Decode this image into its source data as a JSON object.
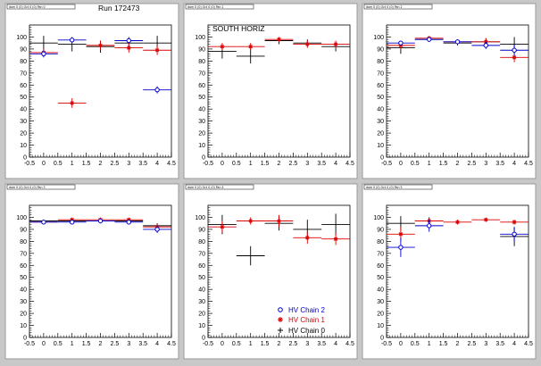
{
  "header": {
    "run_label": "Run 172473"
  },
  "colors": {
    "canvas_bg": "#c8c8c8",
    "pad_bg": "#ffffff",
    "chain2": "#0000cc",
    "chain1": "#dd0000",
    "chain0": "#000000"
  },
  "legend": [
    {
      "label": "HV Chain 2",
      "color": "#0000cc",
      "marker": "open-circle"
    },
    {
      "label": "HV Chain 1",
      "color": "#dd0000",
      "marker": "star"
    },
    {
      "label": "HV Chain 0",
      "color": "#000000",
      "marker": "plus"
    }
  ],
  "chart_data": [
    {
      "type": "scatter",
      "title": "",
      "title_tag": "dom 0 (0) Oct 0 (0) Pan 0",
      "overlay": "",
      "xlim": [
        -0.5,
        4.5
      ],
      "ylim": [
        0,
        110
      ],
      "xticks": [
        "-0.5",
        "0",
        "0.5",
        "1",
        "1.5",
        "2",
        "2.5",
        "3",
        "3.5",
        "4",
        "4.5"
      ],
      "yticks": [
        "0",
        "10",
        "20",
        "30",
        "40",
        "50",
        "60",
        "70",
        "80",
        "90",
        "100"
      ],
      "series": [
        {
          "name": "HV Chain 2",
          "color": "#0000cc",
          "marker": "circle",
          "x": [
            0,
            1,
            3,
            4
          ],
          "y": [
            86,
            97.5,
            97,
            56
          ],
          "yerr": [
            3,
            1,
            1.5,
            3
          ]
        },
        {
          "name": "HV Chain 1",
          "color": "#dd0000",
          "marker": "star",
          "x": [
            0,
            1,
            2,
            3,
            4
          ],
          "y": [
            87,
            45,
            93,
            91,
            89
          ],
          "yerr": [
            3,
            4,
            4,
            4,
            4
          ]
        },
        {
          "name": "HV Chain 0",
          "color": "#000000",
          "marker": "plus",
          "x": [
            0,
            1,
            2,
            3,
            4
          ],
          "y": [
            95,
            94,
            92,
            95,
            95
          ],
          "yerr": [
            6,
            6,
            5,
            5,
            6
          ]
        }
      ]
    },
    {
      "type": "scatter",
      "title": "",
      "title_tag": "dom 0 (0) Oct 0 (0) Pan 1",
      "overlay": "SOUTH HORIZ",
      "xlim": [
        -0.5,
        4.5
      ],
      "ylim": [
        0,
        110
      ],
      "xticks": [
        "-0.5",
        "0",
        "0.5",
        "1",
        "1.5",
        "2",
        "2.5",
        "3",
        "3.5",
        "4",
        "4.5"
      ],
      "yticks": [
        "0",
        "10",
        "20",
        "30",
        "40",
        "50",
        "60",
        "70",
        "80",
        "90",
        "100"
      ],
      "series": [
        {
          "name": "HV Chain 2",
          "color": "#0000cc",
          "marker": "circle",
          "x": [],
          "y": [],
          "yerr": []
        },
        {
          "name": "HV Chain 1",
          "color": "#dd0000",
          "marker": "star",
          "x": [
            0,
            1,
            2,
            3,
            4
          ],
          "y": [
            92,
            92,
            98,
            94,
            94
          ],
          "yerr": [
            3,
            3,
            2,
            3,
            3
          ]
        },
        {
          "name": "HV Chain 0",
          "color": "#000000",
          "marker": "plus",
          "x": [
            0,
            1,
            2,
            3,
            4
          ],
          "y": [
            88,
            84,
            97,
            95,
            92
          ],
          "yerr": [
            6,
            6,
            3,
            3,
            4
          ]
        }
      ]
    },
    {
      "type": "scatter",
      "title": "",
      "title_tag": "dom 0 (0) Oct 0 (0) Pan 2",
      "overlay": "",
      "xlim": [
        -0.5,
        4.5
      ],
      "ylim": [
        0,
        110
      ],
      "xticks": [
        "-0.5",
        "0",
        "0.5",
        "1",
        "1.5",
        "2",
        "2.5",
        "3",
        "3.5",
        "4",
        "4.5"
      ],
      "yticks": [
        "0",
        "10",
        "20",
        "30",
        "40",
        "50",
        "60",
        "70",
        "80",
        "90",
        "100"
      ],
      "series": [
        {
          "name": "HV Chain 2",
          "color": "#0000cc",
          "marker": "circle",
          "x": [
            0,
            1,
            2,
            3,
            4
          ],
          "y": [
            95,
            98,
            96,
            93,
            89
          ],
          "yerr": [
            2,
            1,
            1,
            3,
            5
          ]
        },
        {
          "name": "HV Chain 1",
          "color": "#dd0000",
          "marker": "star",
          "x": [
            0,
            1,
            2,
            3,
            4
          ],
          "y": [
            93,
            99,
            96,
            96,
            83
          ],
          "yerr": [
            3,
            1,
            2,
            3,
            4
          ]
        },
        {
          "name": "HV Chain 0",
          "color": "#000000",
          "marker": "plus",
          "x": [
            0,
            1,
            2,
            3,
            4
          ],
          "y": [
            91,
            98,
            95,
            96,
            94
          ],
          "yerr": [
            5,
            2,
            2,
            3,
            6
          ]
        }
      ]
    },
    {
      "type": "scatter",
      "title": "",
      "title_tag": "dom 0 (0) Oct 0 (0) Pan 3",
      "overlay": "",
      "xlim": [
        -0.5,
        4.5
      ],
      "ylim": [
        0,
        110
      ],
      "xticks": [
        "-0.5",
        "0",
        "0.5",
        "1",
        "1.5",
        "2",
        "2.5",
        "3",
        "3.5",
        "4",
        "4.5"
      ],
      "yticks": [
        "0",
        "10",
        "20",
        "30",
        "40",
        "50",
        "60",
        "70",
        "80",
        "90",
        "100"
      ],
      "series": [
        {
          "name": "HV Chain 2",
          "color": "#0000cc",
          "marker": "circle",
          "x": [
            0,
            1,
            2,
            3,
            4
          ],
          "y": [
            96,
            96,
            97,
            96,
            90
          ],
          "yerr": [
            1,
            2,
            2,
            2,
            3
          ]
        },
        {
          "name": "HV Chain 1",
          "color": "#dd0000",
          "marker": "star",
          "x": [
            0,
            1,
            2,
            3,
            4
          ],
          "y": [
            96,
            98,
            98,
            98,
            92
          ],
          "yerr": [
            1,
            1,
            1,
            1,
            2
          ]
        },
        {
          "name": "HV Chain 0",
          "color": "#000000",
          "marker": "plus",
          "x": [
            0,
            1,
            2,
            3,
            4
          ],
          "y": [
            97,
            97,
            97,
            97,
            93
          ],
          "yerr": [
            1,
            1,
            1,
            1,
            2
          ]
        }
      ]
    },
    {
      "type": "scatter",
      "title": "",
      "title_tag": "dom 0 (0) Oct 0 (0) Pan 4",
      "overlay": "",
      "xlim": [
        -0.5,
        4.5
      ],
      "ylim": [
        0,
        110
      ],
      "xticks": [
        "-0.5",
        "0",
        "0.5",
        "1",
        "1.5",
        "2",
        "2.5",
        "3",
        "3.5",
        "4",
        "4.5"
      ],
      "yticks": [
        "0",
        "10",
        "20",
        "30",
        "40",
        "50",
        "60",
        "70",
        "80",
        "90",
        "100"
      ],
      "series": [
        {
          "name": "HV Chain 2",
          "color": "#0000cc",
          "marker": "circle",
          "x": [],
          "y": [],
          "yerr": []
        },
        {
          "name": "HV Chain 1",
          "color": "#dd0000",
          "marker": "star",
          "x": [
            0,
            1,
            2,
            3,
            4
          ],
          "y": [
            92,
            97,
            97,
            83,
            82
          ],
          "yerr": [
            5,
            3,
            5,
            5,
            5
          ]
        },
        {
          "name": "HV Chain 0",
          "color": "#000000",
          "marker": "plus",
          "x": [
            0,
            1,
            2,
            3,
            4
          ],
          "y": [
            94,
            68,
            95,
            90,
            94
          ],
          "yerr": [
            8,
            8,
            6,
            8,
            9
          ]
        }
      ]
    },
    {
      "type": "scatter",
      "title": "",
      "title_tag": "dom 0 (0) Oct 0 (0) Pan 5",
      "overlay": "",
      "xlim": [
        -0.5,
        4.5
      ],
      "ylim": [
        0,
        110
      ],
      "xticks": [
        "-0.5",
        "0",
        "0.5",
        "1",
        "1.5",
        "2",
        "2.5",
        "3",
        "3.5",
        "4",
        "4.5"
      ],
      "yticks": [
        "0",
        "10",
        "20",
        "30",
        "40",
        "50",
        "60",
        "70",
        "80",
        "90",
        "100"
      ],
      "series": [
        {
          "name": "HV Chain 2",
          "color": "#0000cc",
          "marker": "circle",
          "x": [
            0,
            1,
            4
          ],
          "y": [
            75,
            93,
            86
          ],
          "yerr": [
            8,
            5,
            6
          ]
        },
        {
          "name": "HV Chain 1",
          "color": "#dd0000",
          "marker": "star",
          "x": [
            0,
            1,
            2,
            3,
            4
          ],
          "y": [
            86,
            97,
            96,
            98,
            96
          ],
          "yerr": [
            6,
            2,
            2,
            1,
            2
          ]
        },
        {
          "name": "HV Chain 0",
          "color": "#000000",
          "marker": "plus",
          "x": [
            0,
            1,
            4
          ],
          "y": [
            95,
            97,
            84
          ],
          "yerr": [
            6,
            3,
            8
          ]
        }
      ]
    }
  ]
}
